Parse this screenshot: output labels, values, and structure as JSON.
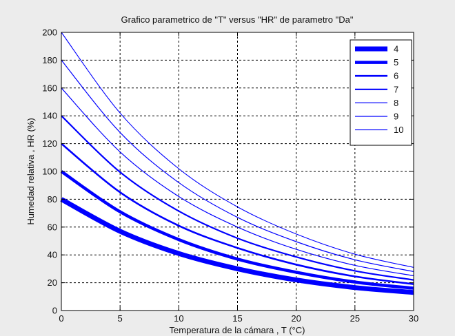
{
  "chart_data": {
    "type": "line",
    "title": "Grafico parametrico de \"T\" versus \"HR\" de parametro \"Da\"",
    "xlabel": "Temperatura de la cámara , T (°C)",
    "ylabel": "Humedad relativa , HR (%)",
    "xlim": [
      0,
      30
    ],
    "ylim": [
      0,
      200
    ],
    "xticks": [
      "0",
      "5",
      "10",
      "15",
      "20",
      "25",
      "30"
    ],
    "yticks": [
      "0",
      "20",
      "40",
      "60",
      "80",
      "100",
      "120",
      "140",
      "160",
      "180",
      "200"
    ],
    "grid": true,
    "legend_position": "top-right",
    "line_color": "#0000ff",
    "series": [
      {
        "name": "4",
        "x": [
          0,
          5,
          10,
          15,
          20,
          25,
          30
        ],
        "y": [
          80,
          57,
          41,
          30,
          22,
          16.5,
          13
        ]
      },
      {
        "name": "5",
        "x": [
          0,
          5,
          10,
          15,
          20,
          25,
          30
        ],
        "y": [
          100,
          71,
          51,
          37,
          27.5,
          20.5,
          16
        ]
      },
      {
        "name": "6",
        "x": [
          0,
          5,
          10,
          15,
          20,
          25,
          30
        ],
        "y": [
          120,
          85,
          61,
          45,
          33,
          24.5,
          19
        ]
      },
      {
        "name": "7",
        "x": [
          0,
          5,
          10,
          15,
          20,
          25,
          30
        ],
        "y": [
          140,
          99.5,
          71.5,
          52,
          38.5,
          28.5,
          22
        ]
      },
      {
        "name": "8",
        "x": [
          0,
          5,
          10,
          15,
          20,
          25,
          30
        ],
        "y": [
          160,
          114,
          82,
          60,
          44,
          32.5,
          25
        ]
      },
      {
        "name": "9",
        "x": [
          0,
          5,
          10,
          15,
          20,
          25,
          30
        ],
        "y": [
          180,
          128,
          92,
          67,
          49.5,
          36.5,
          28
        ]
      },
      {
        "name": "10",
        "x": [
          0,
          5,
          10,
          15,
          20,
          25,
          30
        ],
        "y": [
          200,
          142,
          102,
          74.5,
          55,
          40.5,
          31
        ]
      }
    ]
  }
}
